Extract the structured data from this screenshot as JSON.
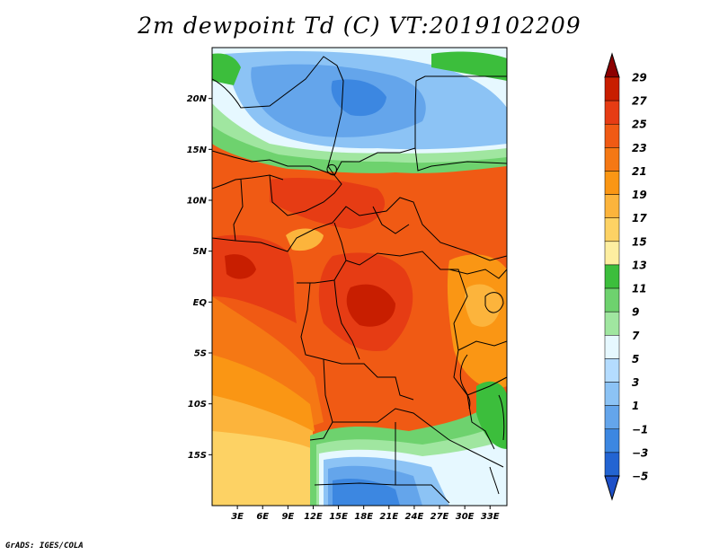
{
  "title": "2m dewpoint Td (C) VT:2019102209",
  "footer": "GrADS: IGES/COLA",
  "variable": "2m dewpoint",
  "units": "C",
  "valid_time": "2019102209",
  "map": {
    "region": "Central Africa",
    "lon_range": [
      0,
      35
    ],
    "lat_range": [
      -20,
      25
    ],
    "lat_ticks": [
      {
        "value": 20,
        "label": "20N"
      },
      {
        "value": 15,
        "label": "15N"
      },
      {
        "value": 10,
        "label": "10N"
      },
      {
        "value": 5,
        "label": "5N"
      },
      {
        "value": 0,
        "label": "EQ"
      },
      {
        "value": -5,
        "label": "5S"
      },
      {
        "value": -10,
        "label": "10S"
      },
      {
        "value": -15,
        "label": "15S"
      }
    ],
    "lon_ticks": [
      {
        "value": 3,
        "label": "3E"
      },
      {
        "value": 6,
        "label": "6E"
      },
      {
        "value": 9,
        "label": "9E"
      },
      {
        "value": 12,
        "label": "12E"
      },
      {
        "value": 15,
        "label": "15E"
      },
      {
        "value": 18,
        "label": "18E"
      },
      {
        "value": 21,
        "label": "21E"
      },
      {
        "value": 24,
        "label": "24E"
      },
      {
        "value": 27,
        "label": "27E"
      },
      {
        "value": 30,
        "label": "30E"
      },
      {
        "value": 33,
        "label": "33E"
      }
    ]
  },
  "colorbar": {
    "levels": [
      {
        "label": "29",
        "color": "#a50000"
      },
      {
        "label": "27",
        "color": "#c81e00"
      },
      {
        "label": "25",
        "color": "#e63c14"
      },
      {
        "label": "23",
        "color": "#f05a14"
      },
      {
        "label": "21",
        "color": "#f57814"
      },
      {
        "label": "19",
        "color": "#fa9614"
      },
      {
        "label": "17",
        "color": "#fcb43c"
      },
      {
        "label": "15",
        "color": "#fdd264"
      },
      {
        "label": "13",
        "color": "#fdeea0"
      },
      {
        "label": "11",
        "color": "#3cbe3c"
      },
      {
        "label": "9",
        "color": "#6ed26e"
      },
      {
        "label": "7",
        "color": "#a0e6a0"
      },
      {
        "label": "5",
        "color": "#e6f8ff"
      },
      {
        "label": "3",
        "color": "#b4dcff"
      },
      {
        "label": "1",
        "color": "#8cc3f5"
      },
      {
        "label": "−1",
        "color": "#64a5eb"
      },
      {
        "label": "−3",
        "color": "#3c87e1"
      },
      {
        "label": "−5",
        "color": "#2364d2"
      }
    ],
    "top_color": "#8c0000",
    "bottom_color": "#1e50c8"
  }
}
